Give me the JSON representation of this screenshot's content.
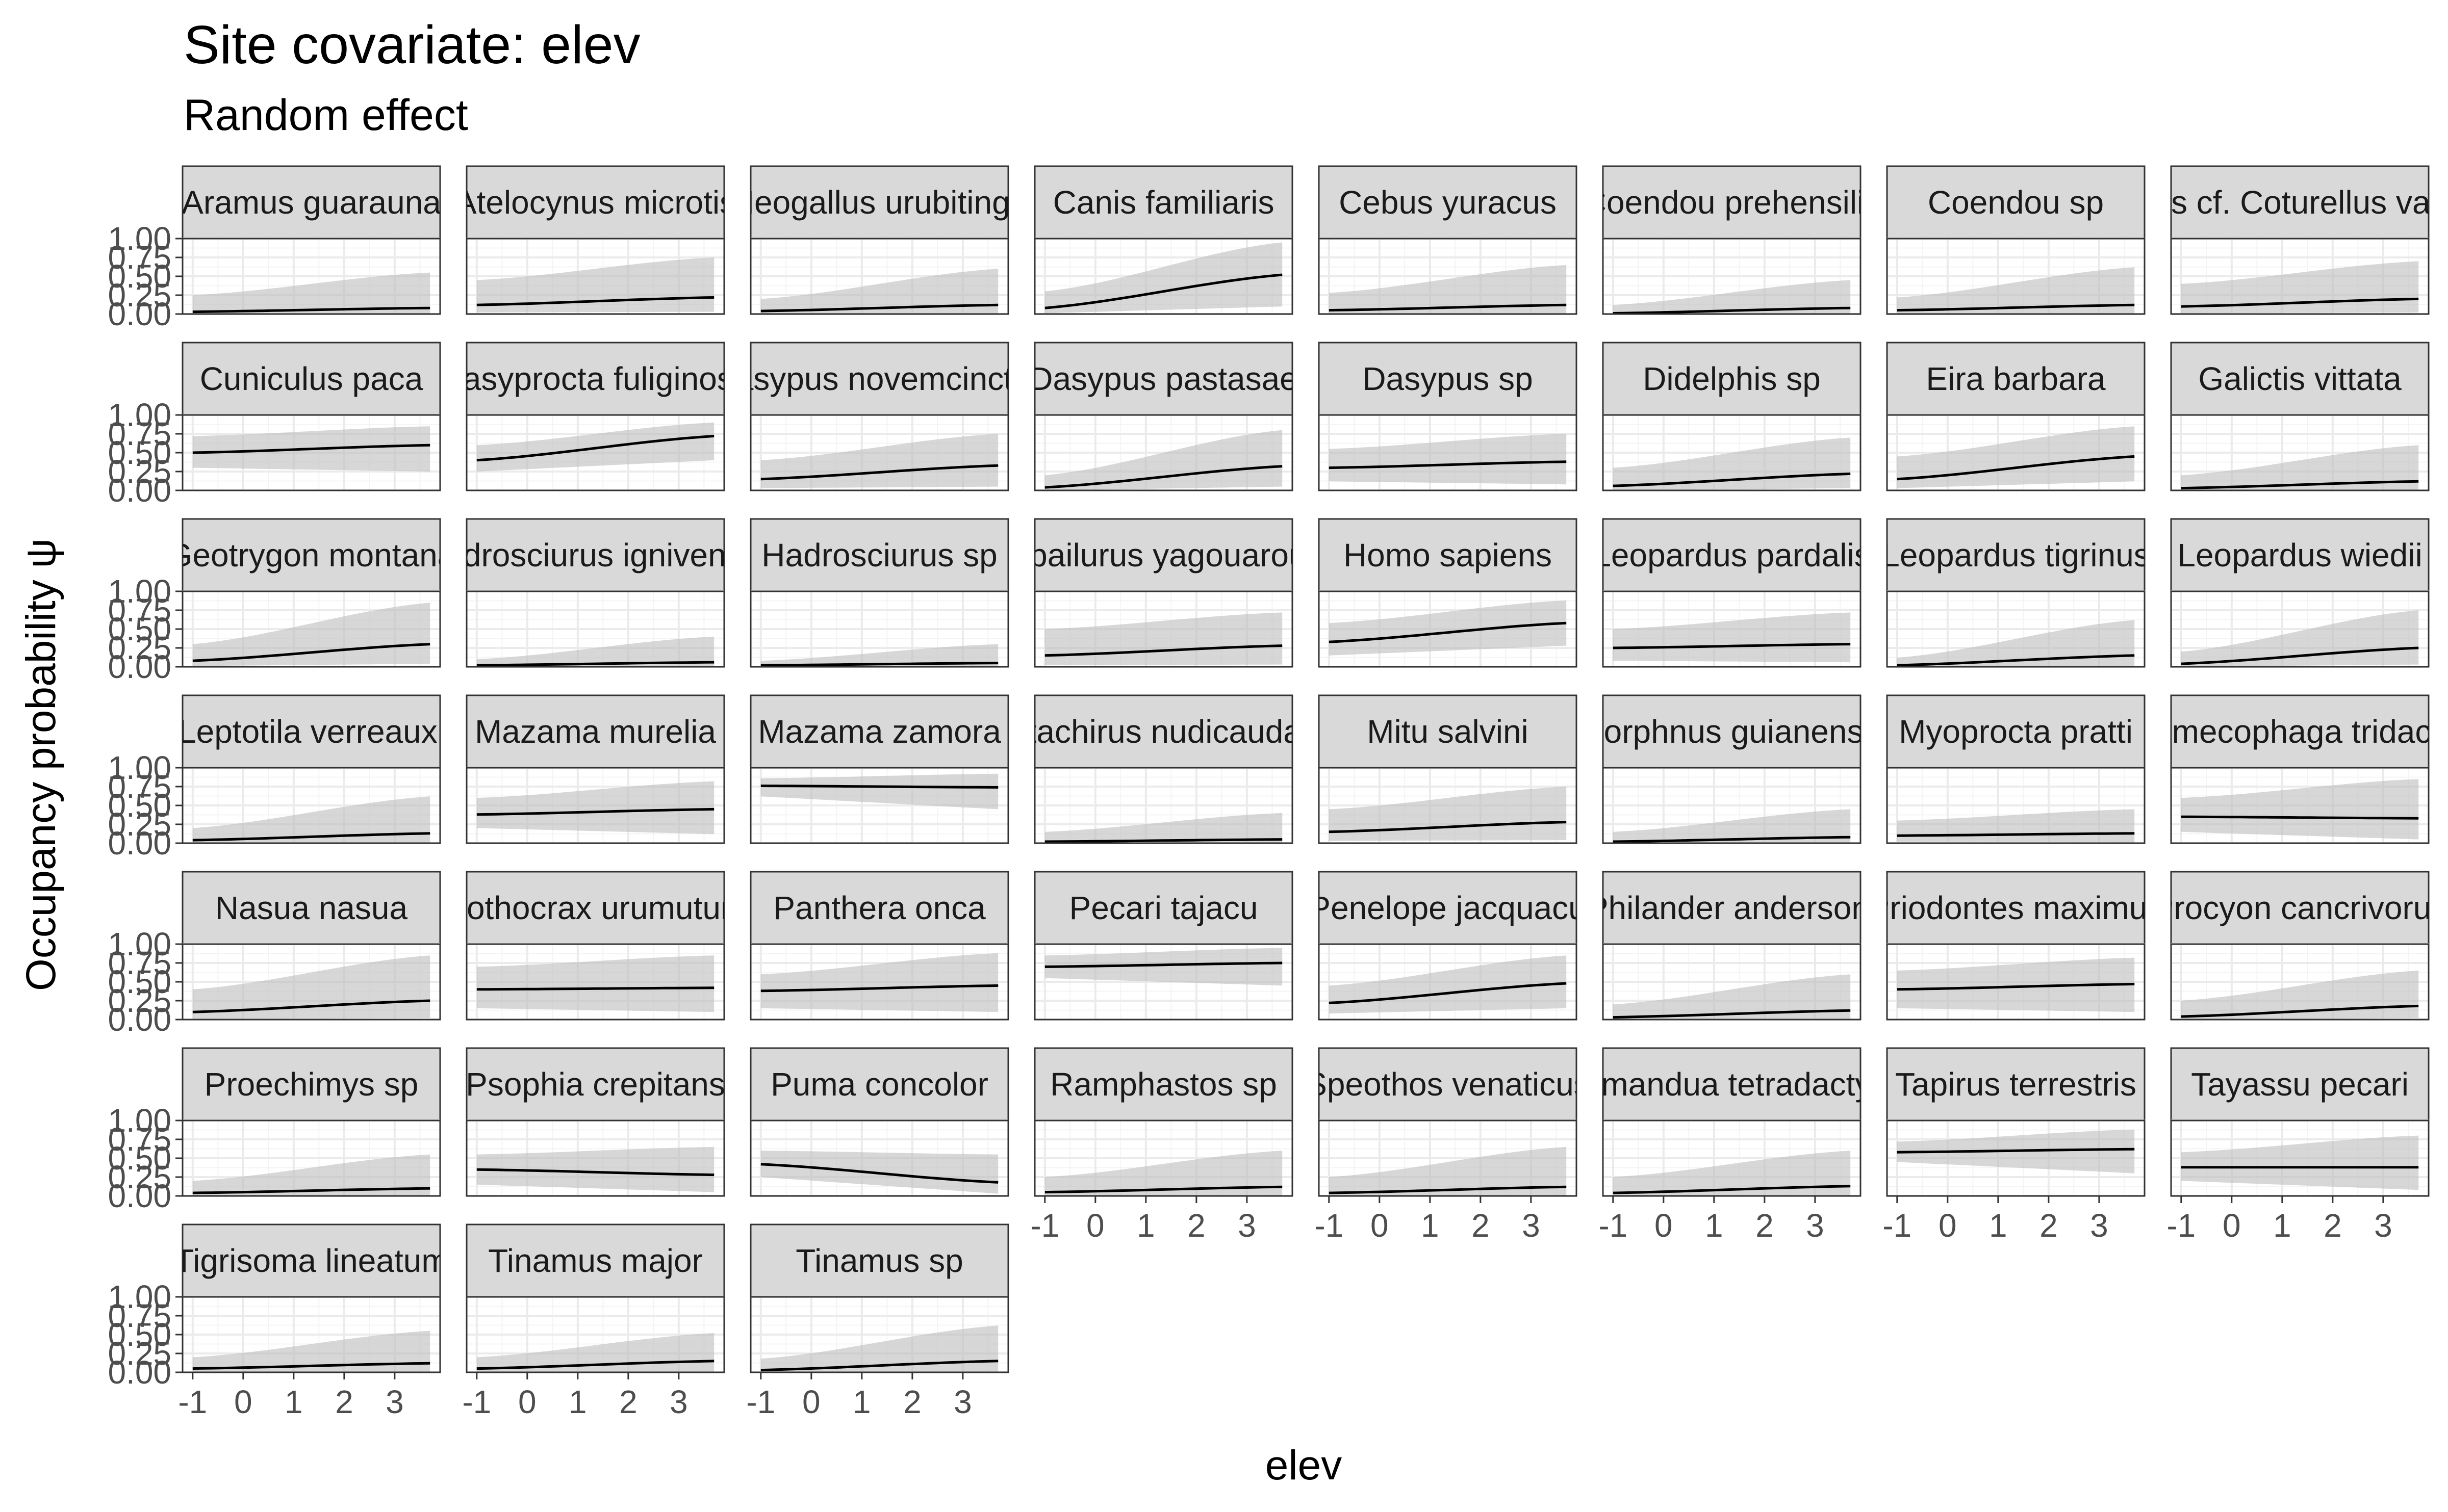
{
  "chart_data": {
    "type": "line",
    "title": "Site covariate: elev",
    "subtitle": "Random effect",
    "xlabel": "elev",
    "ylabel": "Occupancy probability  ψ",
    "xlim": [
      -1.2,
      3.9
    ],
    "ylim": [
      0,
      1
    ],
    "x_ticks": [
      -1,
      0,
      1,
      2,
      3
    ],
    "x_tick_labels": [
      "-1",
      "0",
      "1",
      "2",
      "3"
    ],
    "y_ticks": [
      0,
      0.25,
      0.5,
      0.75,
      1
    ],
    "y_tick_labels": [
      "0.00",
      "0.25",
      "0.50",
      "0.75",
      "1.00"
    ],
    "x": [
      -1,
      3.7
    ],
    "grid": true,
    "panels": [
      {
        "label": "Aramus guarauna",
        "line": [
          0.03,
          0.08
        ],
        "lower": [
          0.0,
          0.01
        ],
        "upper": [
          0.25,
          0.55
        ]
      },
      {
        "label": "Atelocynus microtis",
        "line": [
          0.12,
          0.22
        ],
        "lower": [
          0.02,
          0.03
        ],
        "upper": [
          0.45,
          0.75
        ]
      },
      {
        "label": "Neogallus urubitinga",
        "line": [
          0.04,
          0.12
        ],
        "lower": [
          0.0,
          0.01
        ],
        "upper": [
          0.2,
          0.6
        ]
      },
      {
        "label": "Canis familiaris",
        "line": [
          0.08,
          0.52
        ],
        "lower": [
          0.01,
          0.1
        ],
        "upper": [
          0.3,
          0.95
        ]
      },
      {
        "label": "Cebus yuracus",
        "line": [
          0.05,
          0.12
        ],
        "lower": [
          0.0,
          0.01
        ],
        "upper": [
          0.28,
          0.65
        ]
      },
      {
        "label": "Coendou prehensilis",
        "line": [
          0.01,
          0.08
        ],
        "lower": [
          0.0,
          0.0
        ],
        "upper": [
          0.12,
          0.45
        ]
      },
      {
        "label": "Coendou sp",
        "line": [
          0.05,
          0.12
        ],
        "lower": [
          0.0,
          0.01
        ],
        "upper": [
          0.22,
          0.62
        ]
      },
      {
        "label": "Cyclopes cf. Coturellus variegatus",
        "line": [
          0.1,
          0.2
        ],
        "lower": [
          0.01,
          0.02
        ],
        "upper": [
          0.4,
          0.7
        ]
      },
      {
        "label": "Cuniculus paca",
        "line": [
          0.5,
          0.6
        ],
        "lower": [
          0.3,
          0.25
        ],
        "upper": [
          0.72,
          0.85
        ]
      },
      {
        "label": "Dasyprocta fuliginosa",
        "line": [
          0.4,
          0.72
        ],
        "lower": [
          0.25,
          0.4
        ],
        "upper": [
          0.6,
          0.9
        ]
      },
      {
        "label": "Dasypus novemcinctus",
        "line": [
          0.15,
          0.33
        ],
        "lower": [
          0.03,
          0.05
        ],
        "upper": [
          0.4,
          0.75
        ]
      },
      {
        "label": "Dasypus pastasae",
        "line": [
          0.04,
          0.32
        ],
        "lower": [
          0.0,
          0.05
        ],
        "upper": [
          0.2,
          0.8
        ]
      },
      {
        "label": "Dasypus sp",
        "line": [
          0.3,
          0.38
        ],
        "lower": [
          0.12,
          0.08
        ],
        "upper": [
          0.55,
          0.75
        ]
      },
      {
        "label": "Didelphis sp",
        "line": [
          0.06,
          0.22
        ],
        "lower": [
          0.0,
          0.03
        ],
        "upper": [
          0.3,
          0.7
        ]
      },
      {
        "label": "Eira barbara",
        "line": [
          0.15,
          0.45
        ],
        "lower": [
          0.03,
          0.12
        ],
        "upper": [
          0.45,
          0.85
        ]
      },
      {
        "label": "Galictis vittata",
        "line": [
          0.03,
          0.12
        ],
        "lower": [
          0.0,
          0.01
        ],
        "upper": [
          0.2,
          0.6
        ]
      },
      {
        "label": "Geotrygon montana",
        "line": [
          0.08,
          0.3
        ],
        "lower": [
          0.01,
          0.04
        ],
        "upper": [
          0.3,
          0.85
        ]
      },
      {
        "label": "Hadrosciurus igniventris",
        "line": [
          0.02,
          0.06
        ],
        "lower": [
          0.0,
          0.0
        ],
        "upper": [
          0.1,
          0.4
        ]
      },
      {
        "label": "Hadrosciurus sp",
        "line": [
          0.02,
          0.05
        ],
        "lower": [
          0.0,
          0.0
        ],
        "upper": [
          0.08,
          0.3
        ]
      },
      {
        "label": "Herpailurus yagouaroundi",
        "line": [
          0.15,
          0.28
        ],
        "lower": [
          0.02,
          0.03
        ],
        "upper": [
          0.5,
          0.72
        ]
      },
      {
        "label": "Homo sapiens",
        "line": [
          0.33,
          0.58
        ],
        "lower": [
          0.15,
          0.28
        ],
        "upper": [
          0.58,
          0.88
        ]
      },
      {
        "label": "Leopardus pardalis",
        "line": [
          0.25,
          0.3
        ],
        "lower": [
          0.08,
          0.06
        ],
        "upper": [
          0.5,
          0.72
        ]
      },
      {
        "label": "Leopardus tigrinus",
        "line": [
          0.02,
          0.15
        ],
        "lower": [
          0.0,
          0.01
        ],
        "upper": [
          0.12,
          0.62
        ]
      },
      {
        "label": "Leopardus wiedii",
        "line": [
          0.04,
          0.25
        ],
        "lower": [
          0.0,
          0.03
        ],
        "upper": [
          0.2,
          0.75
        ]
      },
      {
        "label": "Leptotila verreauxi",
        "line": [
          0.04,
          0.13
        ],
        "lower": [
          0.0,
          0.01
        ],
        "upper": [
          0.2,
          0.62
        ]
      },
      {
        "label": "Mazama murelia",
        "line": [
          0.38,
          0.45
        ],
        "lower": [
          0.2,
          0.12
        ],
        "upper": [
          0.6,
          0.82
        ]
      },
      {
        "label": "Mazama zamora",
        "line": [
          0.76,
          0.74
        ],
        "lower": [
          0.62,
          0.45
        ],
        "upper": [
          0.86,
          0.92
        ]
      },
      {
        "label": "Metachirus nudicaudatus",
        "line": [
          0.02,
          0.05
        ],
        "lower": [
          0.0,
          0.0
        ],
        "upper": [
          0.15,
          0.4
        ]
      },
      {
        "label": "Mitu salvini",
        "line": [
          0.15,
          0.28
        ],
        "lower": [
          0.03,
          0.04
        ],
        "upper": [
          0.45,
          0.75
        ]
      },
      {
        "label": "Morphnus guianensis",
        "line": [
          0.02,
          0.08
        ],
        "lower": [
          0.0,
          0.0
        ],
        "upper": [
          0.15,
          0.45
        ]
      },
      {
        "label": "Myoprocta pratti",
        "line": [
          0.1,
          0.13
        ],
        "lower": [
          0.02,
          0.01
        ],
        "upper": [
          0.3,
          0.45
        ]
      },
      {
        "label": "Myrmecophaga tridactyla",
        "line": [
          0.35,
          0.33
        ],
        "lower": [
          0.15,
          0.05
        ],
        "upper": [
          0.6,
          0.85
        ]
      },
      {
        "label": "Nasua nasua",
        "line": [
          0.1,
          0.25
        ],
        "lower": [
          0.01,
          0.02
        ],
        "upper": [
          0.4,
          0.85
        ]
      },
      {
        "label": "Nothocrax urumutum",
        "line": [
          0.4,
          0.42
        ],
        "lower": [
          0.15,
          0.1
        ],
        "upper": [
          0.7,
          0.85
        ]
      },
      {
        "label": "Panthera onca",
        "line": [
          0.38,
          0.45
        ],
        "lower": [
          0.15,
          0.1
        ],
        "upper": [
          0.6,
          0.88
        ]
      },
      {
        "label": "Pecari tajacu",
        "line": [
          0.7,
          0.75
        ],
        "lower": [
          0.55,
          0.45
        ],
        "upper": [
          0.85,
          0.95
        ]
      },
      {
        "label": "Penelope jacquacu",
        "line": [
          0.22,
          0.48
        ],
        "lower": [
          0.08,
          0.15
        ],
        "upper": [
          0.45,
          0.85
        ]
      },
      {
        "label": "Philander andersoni",
        "line": [
          0.03,
          0.12
        ],
        "lower": [
          0.0,
          0.01
        ],
        "upper": [
          0.2,
          0.6
        ]
      },
      {
        "label": "Priodontes maximus",
        "line": [
          0.4,
          0.47
        ],
        "lower": [
          0.15,
          0.1
        ],
        "upper": [
          0.65,
          0.82
        ]
      },
      {
        "label": "Procyon cancrivorus",
        "line": [
          0.04,
          0.18
        ],
        "lower": [
          0.0,
          0.02
        ],
        "upper": [
          0.25,
          0.65
        ]
      },
      {
        "label": "Proechimys sp",
        "line": [
          0.04,
          0.1
        ],
        "lower": [
          0.0,
          0.01
        ],
        "upper": [
          0.2,
          0.55
        ]
      },
      {
        "label": "Psophia crepitans",
        "line": [
          0.35,
          0.28
        ],
        "lower": [
          0.15,
          0.05
        ],
        "upper": [
          0.55,
          0.65
        ]
      },
      {
        "label": "Puma concolor",
        "line": [
          0.42,
          0.18
        ],
        "lower": [
          0.25,
          0.03
        ],
        "upper": [
          0.6,
          0.55
        ]
      },
      {
        "label": "Ramphastos sp",
        "line": [
          0.05,
          0.12
        ],
        "lower": [
          0.0,
          0.01
        ],
        "upper": [
          0.25,
          0.6
        ]
      },
      {
        "label": "Speothos venaticus",
        "line": [
          0.04,
          0.12
        ],
        "lower": [
          0.0,
          0.01
        ],
        "upper": [
          0.25,
          0.65
        ]
      },
      {
        "label": "Tamandua tetradactyla",
        "line": [
          0.04,
          0.13
        ],
        "lower": [
          0.0,
          0.01
        ],
        "upper": [
          0.25,
          0.6
        ]
      },
      {
        "label": "Tapirus terrestris",
        "line": [
          0.58,
          0.62
        ],
        "lower": [
          0.45,
          0.3
        ],
        "upper": [
          0.72,
          0.88
        ]
      },
      {
        "label": "Tayassu pecari",
        "line": [
          0.38,
          0.38
        ],
        "lower": [
          0.2,
          0.08
        ],
        "upper": [
          0.58,
          0.8
        ]
      },
      {
        "label": "Tigrisoma lineatum",
        "line": [
          0.05,
          0.12
        ],
        "lower": [
          0.0,
          0.01
        ],
        "upper": [
          0.2,
          0.55
        ]
      },
      {
        "label": "Tinamus major",
        "line": [
          0.05,
          0.15
        ],
        "lower": [
          0.0,
          0.01
        ],
        "upper": [
          0.2,
          0.52
        ]
      },
      {
        "label": "Tinamus sp",
        "line": [
          0.03,
          0.15
        ],
        "lower": [
          0.0,
          0.01
        ],
        "upper": [
          0.18,
          0.62
        ]
      }
    ]
  }
}
